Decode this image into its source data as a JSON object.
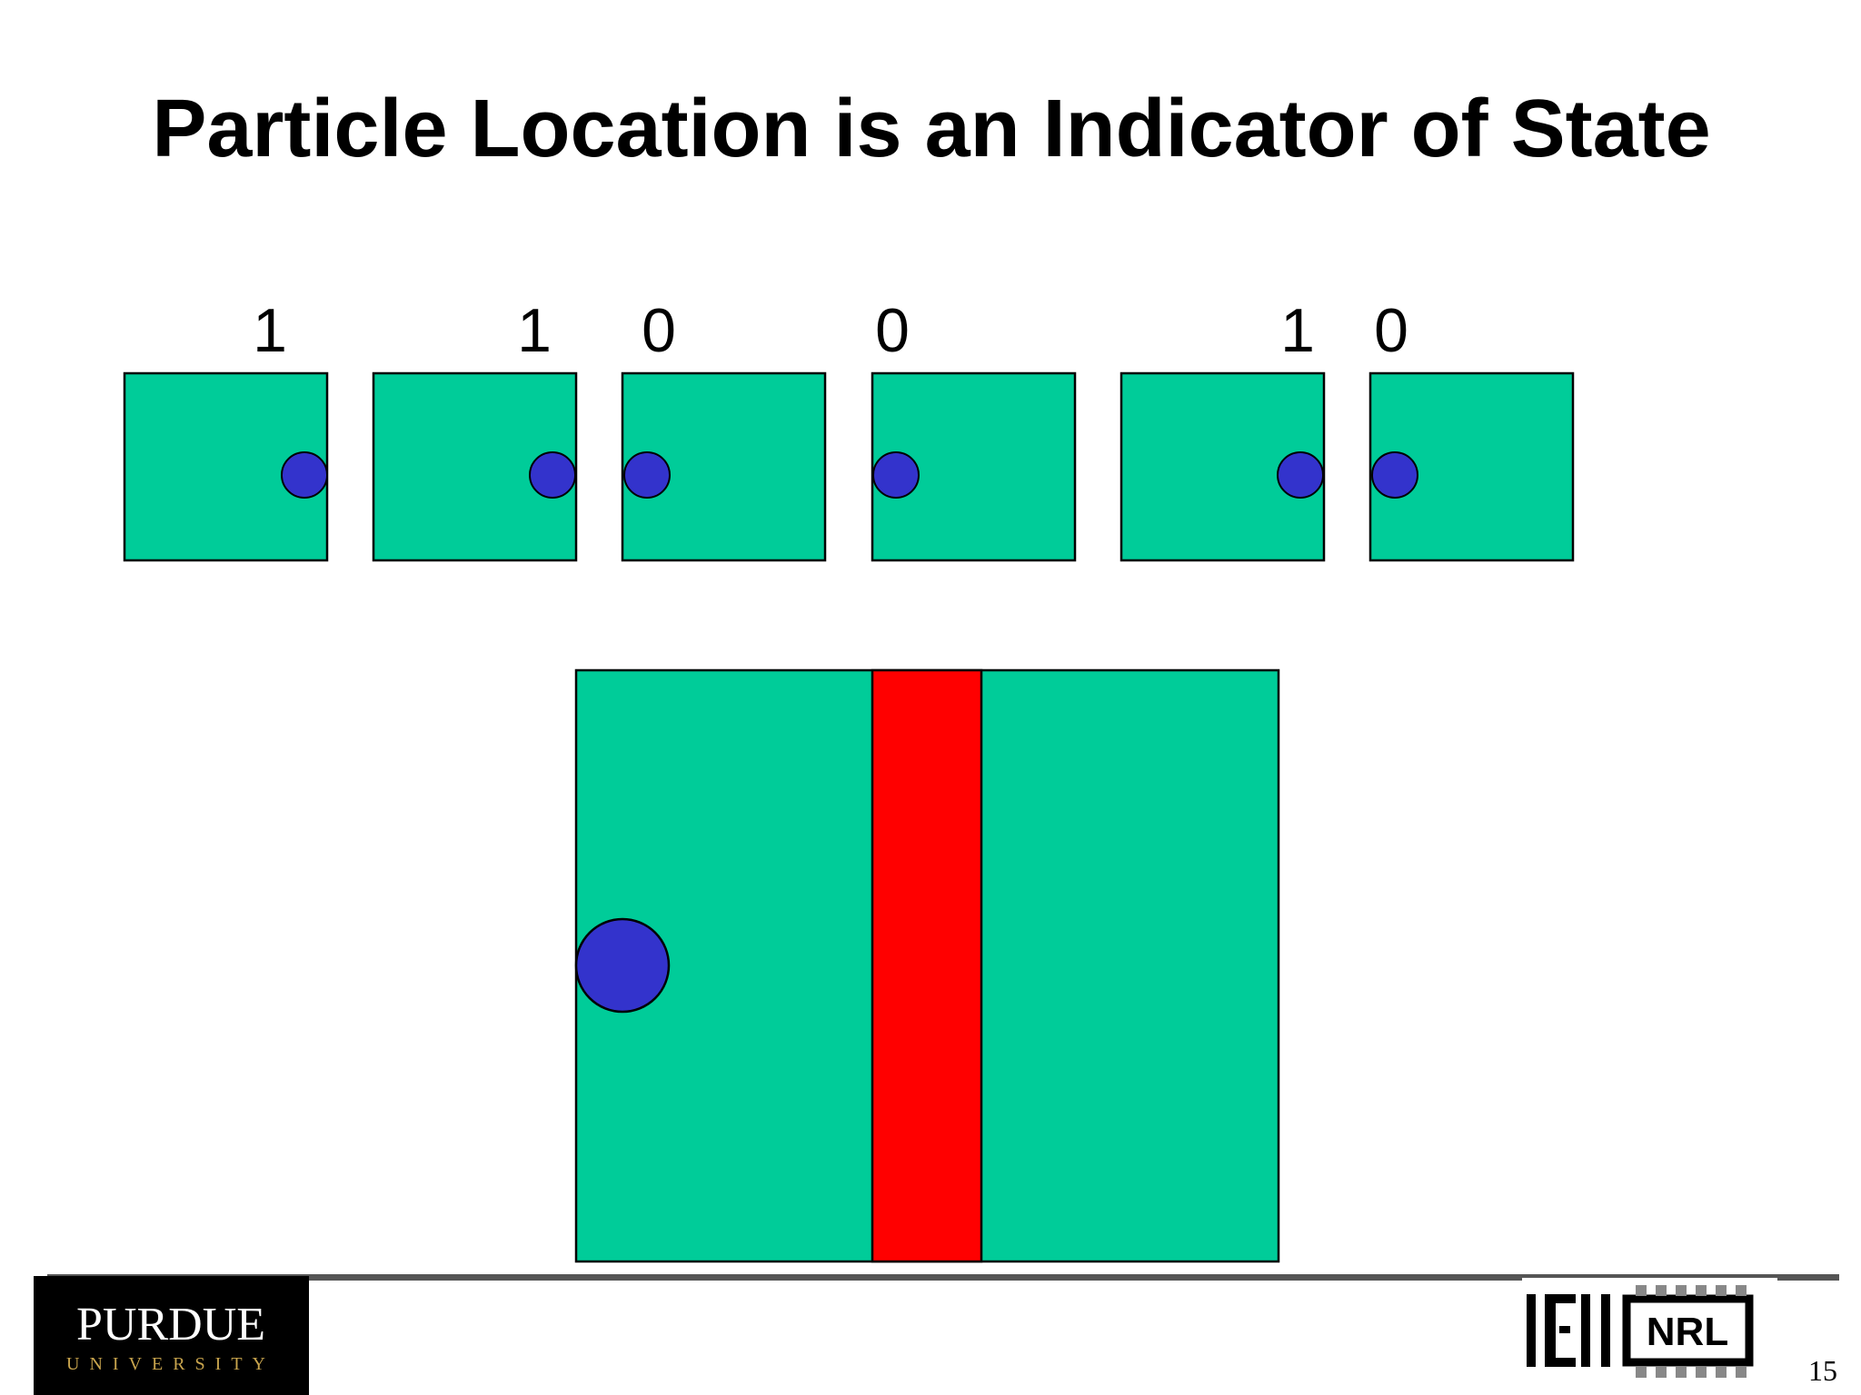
{
  "title": "Particle Location is an Indicator of State",
  "bits": [
    "1",
    "1",
    "0",
    "0",
    "1",
    "0"
  ],
  "logos": {
    "purdue": "PURDUE",
    "purdue_sub": "UNIVERSITY",
    "nrl": "NRL"
  },
  "page_number": "15"
}
